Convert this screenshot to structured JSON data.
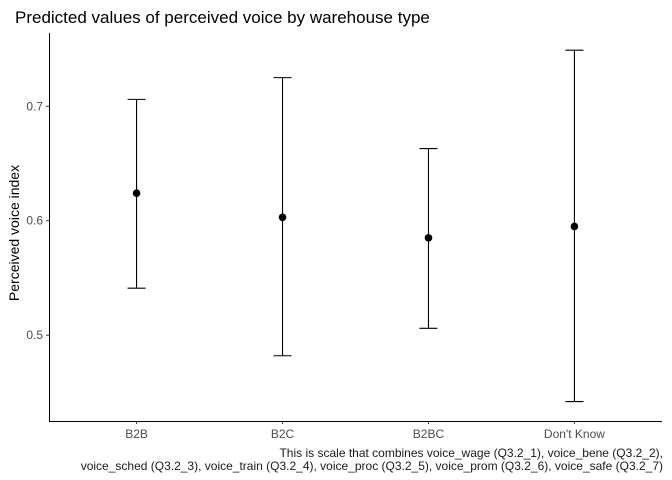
{
  "chart_data": {
    "type": "scatter",
    "title": "Predicted values of perceived voice by warehouse type",
    "xlabel": "",
    "ylabel": "Perceived voice index",
    "categories": [
      "B2B",
      "B2C",
      "B2BC",
      "Don't Know"
    ],
    "values": [
      0.624,
      0.603,
      0.585,
      0.595
    ],
    "lower": [
      0.541,
      0.482,
      0.506,
      0.442
    ],
    "upper": [
      0.706,
      0.725,
      0.663,
      0.749
    ],
    "ylim": [
      0.425,
      0.764
    ],
    "yticks": [
      0.5,
      0.6,
      0.7
    ],
    "ytick_labels": [
      "0.5",
      "0.6",
      "0.7"
    ],
    "grid": false,
    "caption": [
      "This is scale that combines voice_wage (Q3.2_1), voice_bene (Q3.2_2),",
      "voice_sched (Q3.2_3), voice_train (Q3.2_4), voice_proc (Q3.2_5), voice_prom (Q3.2_6), voice_safe (Q3.2_7)"
    ]
  }
}
